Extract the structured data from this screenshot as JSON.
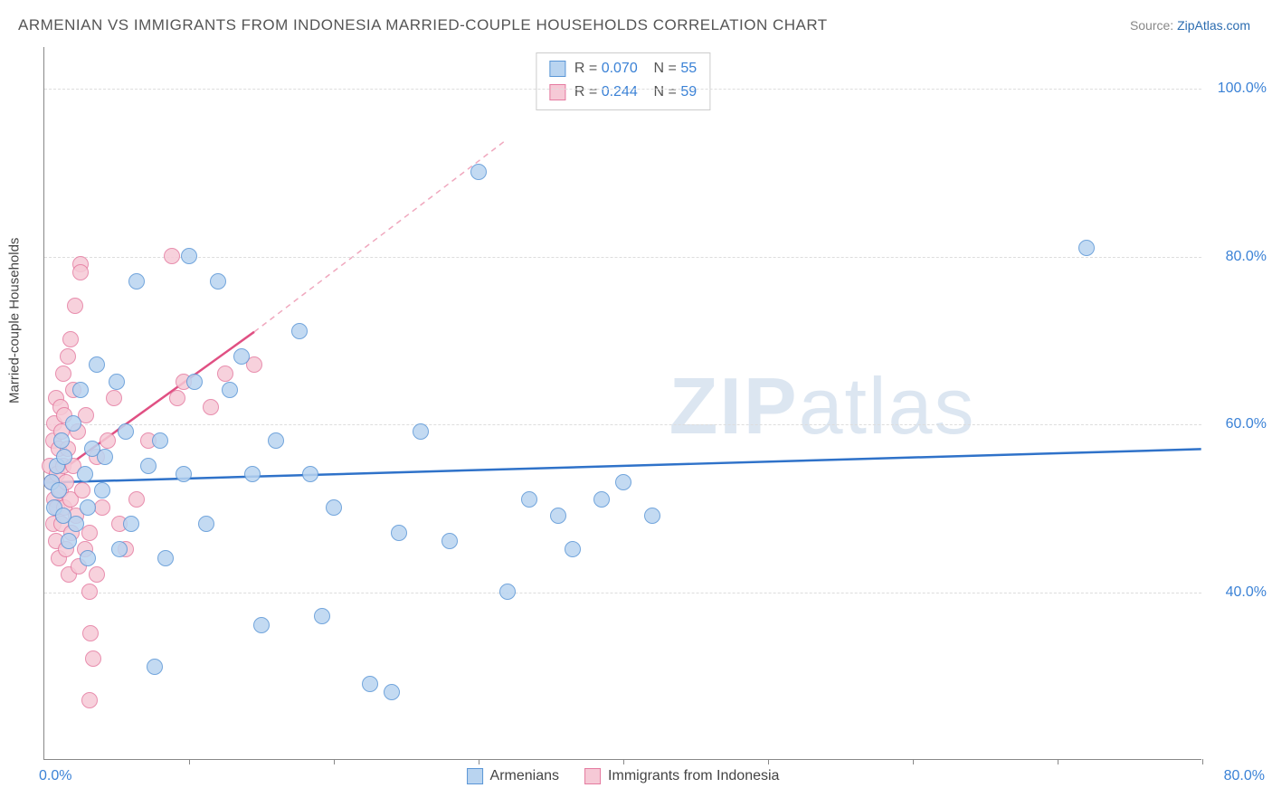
{
  "title": "ARMENIAN VS IMMIGRANTS FROM INDONESIA MARRIED-COUPLE HOUSEHOLDS CORRELATION CHART",
  "source": {
    "label": "Source: ",
    "site": "ZipAtlas.com"
  },
  "y_axis_title": "Married-couple Households",
  "watermark": {
    "a": "ZIP",
    "b": "atlas"
  },
  "chart": {
    "type": "scatter",
    "background_color": "#ffffff",
    "grid_color": "#dddddd",
    "axis_color": "#888888",
    "tick_label_color": "#3b82d6",
    "xlim": [
      0,
      80
    ],
    "ylim": [
      20,
      105
    ],
    "x_ticks": [
      0,
      10,
      20,
      30,
      40,
      50,
      60,
      70,
      80
    ],
    "x_tick_labels": {
      "0": "0.0%",
      "80": "80.0%"
    },
    "y_ticks": [
      40,
      60,
      80,
      100
    ],
    "y_tick_labels": {
      "40": "40.0%",
      "60": "60.0%",
      "80": "80.0%",
      "100": "100.0%"
    },
    "point_radius": 9,
    "point_border_width": 1.5,
    "series": [
      {
        "name": "Armenians",
        "fill": "#b9d4f0",
        "stroke": "#5a96d6",
        "r_value": "0.070",
        "n_value": "55",
        "trend": {
          "x1": 0,
          "y1": 53,
          "x2": 80,
          "y2": 57,
          "color": "#2f72c9",
          "width": 2.5,
          "dash": ""
        },
        "points": [
          [
            0.5,
            53
          ],
          [
            0.7,
            50
          ],
          [
            0.9,
            55
          ],
          [
            1.0,
            52
          ],
          [
            1.2,
            58
          ],
          [
            1.3,
            49
          ],
          [
            1.4,
            56
          ],
          [
            1.7,
            46
          ],
          [
            2.0,
            60
          ],
          [
            2.2,
            48
          ],
          [
            2.5,
            64
          ],
          [
            2.8,
            54
          ],
          [
            3.0,
            44
          ],
          [
            3.0,
            50
          ],
          [
            3.3,
            57
          ],
          [
            3.6,
            67
          ],
          [
            4.0,
            52
          ],
          [
            4.2,
            56
          ],
          [
            5.0,
            65
          ],
          [
            5.2,
            45
          ],
          [
            5.6,
            59
          ],
          [
            6.0,
            48
          ],
          [
            6.4,
            77
          ],
          [
            7.2,
            55
          ],
          [
            7.6,
            31
          ],
          [
            8.0,
            58
          ],
          [
            8.4,
            44
          ],
          [
            9.6,
            54
          ],
          [
            10.0,
            80
          ],
          [
            10.4,
            65
          ],
          [
            11.2,
            48
          ],
          [
            12.0,
            77
          ],
          [
            12.8,
            64
          ],
          [
            13.6,
            68
          ],
          [
            14.4,
            54
          ],
          [
            15.0,
            36
          ],
          [
            16.0,
            58
          ],
          [
            17.6,
            71
          ],
          [
            18.4,
            54
          ],
          [
            19.2,
            37
          ],
          [
            20.0,
            50
          ],
          [
            22.5,
            29
          ],
          [
            24.0,
            28
          ],
          [
            24.5,
            47
          ],
          [
            26.0,
            59
          ],
          [
            28.0,
            46
          ],
          [
            30.0,
            90
          ],
          [
            32.0,
            40
          ],
          [
            33.5,
            51
          ],
          [
            35.5,
            49
          ],
          [
            36.5,
            45
          ],
          [
            38.5,
            51
          ],
          [
            40.0,
            53
          ],
          [
            42.0,
            49
          ],
          [
            72.0,
            81
          ]
        ]
      },
      {
        "name": "Immigrants from Indonesia",
        "fill": "#f6c9d6",
        "stroke": "#e57ba0",
        "r_value": "0.244",
        "n_value": "59",
        "trend_solid": {
          "x1": 0,
          "y1": 53,
          "x2": 14.5,
          "y2": 71,
          "color": "#e05083",
          "width": 2.5
        },
        "trend_dash": {
          "x1": 14.5,
          "y1": 71,
          "x2": 32,
          "y2": 94,
          "color": "#f0a8be",
          "width": 1.5,
          "dash": "6 5"
        },
        "points": [
          [
            0.4,
            55
          ],
          [
            0.5,
            53
          ],
          [
            0.6,
            48
          ],
          [
            0.6,
            58
          ],
          [
            0.7,
            51
          ],
          [
            0.7,
            60
          ],
          [
            0.8,
            46
          ],
          [
            0.8,
            63
          ],
          [
            0.9,
            54
          ],
          [
            0.9,
            50
          ],
          [
            1.0,
            57
          ],
          [
            1.0,
            44
          ],
          [
            1.1,
            62
          ],
          [
            1.1,
            52
          ],
          [
            1.2,
            59
          ],
          [
            1.2,
            48
          ],
          [
            1.3,
            55
          ],
          [
            1.3,
            66
          ],
          [
            1.4,
            50
          ],
          [
            1.4,
            61
          ],
          [
            1.5,
            53
          ],
          [
            1.5,
            45
          ],
          [
            1.6,
            68
          ],
          [
            1.6,
            57
          ],
          [
            1.7,
            42
          ],
          [
            1.8,
            70
          ],
          [
            1.8,
            51
          ],
          [
            1.9,
            47
          ],
          [
            2.0,
            64
          ],
          [
            2.0,
            55
          ],
          [
            2.1,
            74
          ],
          [
            2.2,
            49
          ],
          [
            2.3,
            59
          ],
          [
            2.4,
            43
          ],
          [
            2.5,
            79
          ],
          [
            2.5,
            78
          ],
          [
            2.6,
            52
          ],
          [
            2.8,
            45
          ],
          [
            2.9,
            61
          ],
          [
            3.1,
            27
          ],
          [
            3.1,
            40
          ],
          [
            3.1,
            47
          ],
          [
            3.2,
            35
          ],
          [
            3.4,
            32
          ],
          [
            3.6,
            56
          ],
          [
            3.6,
            42
          ],
          [
            4.0,
            50
          ],
          [
            4.4,
            58
          ],
          [
            4.8,
            63
          ],
          [
            5.2,
            48
          ],
          [
            5.6,
            45
          ],
          [
            6.4,
            51
          ],
          [
            7.2,
            58
          ],
          [
            8.8,
            80
          ],
          [
            9.2,
            63
          ],
          [
            9.6,
            65
          ],
          [
            11.5,
            62
          ],
          [
            12.5,
            66
          ],
          [
            14.5,
            67
          ]
        ]
      }
    ],
    "corr_box_labels": {
      "R": "R =",
      "N": "N ="
    }
  }
}
